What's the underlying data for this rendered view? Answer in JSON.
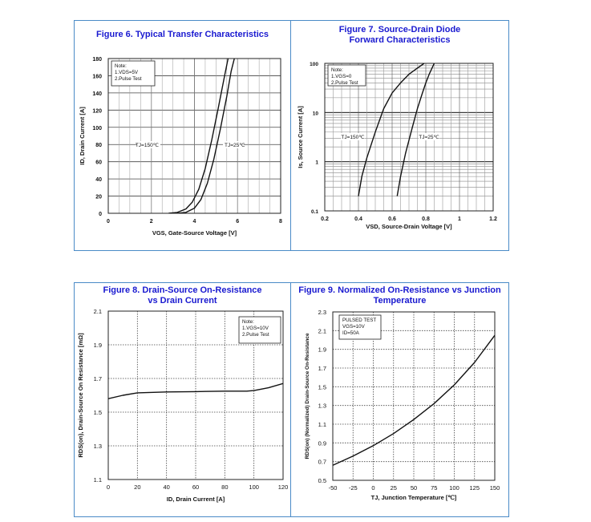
{
  "chart_data": [
    {
      "type": "line",
      "title": "Figure 6. Typical Transfer Characteristics",
      "xlabel": "VGS, Gate-Source Voltage [V]",
      "ylabel": "ID, Drain Current [A]",
      "xlim": [
        0,
        8
      ],
      "ylim": [
        0,
        180
      ],
      "xticks": [
        "0",
        "2",
        "4",
        "6",
        "8"
      ],
      "yticks": [
        "0",
        "20",
        "40",
        "60",
        "80",
        "100",
        "120",
        "140",
        "160",
        "180"
      ],
      "note": [
        "Note:",
        "1.VDS=5V",
        "2.Pulse Test"
      ],
      "series": [
        {
          "name": "TJ=150℃",
          "x": [
            2.8,
            3.2,
            3.6,
            3.9,
            4.2,
            4.5,
            4.8,
            5.1,
            5.4,
            5.6
          ],
          "y": [
            0,
            1,
            5,
            13,
            28,
            52,
            85,
            122,
            160,
            185
          ]
        },
        {
          "name": "TJ=25℃",
          "x": [
            3.2,
            3.6,
            4.0,
            4.3,
            4.6,
            4.9,
            5.2,
            5.5,
            5.7,
            5.9
          ],
          "y": [
            0,
            1,
            6,
            16,
            35,
            63,
            98,
            136,
            165,
            185
          ]
        }
      ]
    },
    {
      "type": "line",
      "title": "Figure 7. Source-Drain Diode Forward Characteristics",
      "xlabel": "VSD, Source-Drain Voltage [V]",
      "ylabel": "Is, Source Current [A]",
      "yscale": "log",
      "xlim": [
        0.2,
        1.2
      ],
      "ylim": [
        0.1,
        100
      ],
      "xticks": [
        "0.2",
        "0.4",
        "0.6",
        "0.8",
        "1",
        "1.2"
      ],
      "yticks": [
        "0.1",
        "1",
        "10",
        "100"
      ],
      "note": [
        "Note:",
        "1.VGS=0",
        "2.Pulse Test"
      ],
      "series": [
        {
          "name": "TJ=150℃",
          "x": [
            0.4,
            0.42,
            0.45,
            0.5,
            0.55,
            0.6,
            0.65,
            0.7,
            0.75,
            0.79
          ],
          "y": [
            0.2,
            0.5,
            1.2,
            4,
            12,
            25,
            40,
            60,
            80,
            100
          ]
        },
        {
          "name": "TJ=25℃",
          "x": [
            0.63,
            0.65,
            0.68,
            0.72,
            0.75,
            0.78,
            0.8,
            0.82,
            0.85
          ],
          "y": [
            0.2,
            0.5,
            1.5,
            5,
            12,
            25,
            40,
            60,
            100
          ]
        }
      ]
    },
    {
      "type": "line",
      "title": "Figure 8. Drain-Source On-Resistance vs Drain Current",
      "xlabel": "ID, Drain Current [A]",
      "ylabel": "RDS(on), Drain-Source On Resistance [mΩ]",
      "xlim": [
        0,
        120
      ],
      "ylim": [
        1.1,
        2.1
      ],
      "xticks": [
        "0",
        "20",
        "40",
        "60",
        "80",
        "100",
        "120"
      ],
      "yticks": [
        "1.1",
        "1.3",
        "1.5",
        "1.7",
        "1.9",
        "2.1"
      ],
      "note": [
        "Note:",
        "1.VGS=10V",
        "2.Pulse Test"
      ],
      "series": [
        {
          "name": "RDS(on)",
          "x": [
            0,
            10,
            20,
            40,
            60,
            80,
            95,
            100,
            110,
            120
          ],
          "y": [
            1.58,
            1.6,
            1.615,
            1.62,
            1.622,
            1.625,
            1.625,
            1.628,
            1.645,
            1.67
          ]
        }
      ]
    },
    {
      "type": "line",
      "title": "Figure 9. Normalized On-Resistance vs Junction Temperature",
      "xlabel": "TJ, Junction Temperature [℃]",
      "ylabel": "RDS(on) (Normalized) Drain-Source On-Resistance",
      "xlim": [
        -50,
        150
      ],
      "ylim": [
        0.5,
        2.3
      ],
      "xticks": [
        "-50",
        "-25",
        "0",
        "25",
        "50",
        "75",
        "100",
        "125",
        "150"
      ],
      "yticks": [
        "0.5",
        "0.7",
        "0.9",
        "1.1",
        "1.3",
        "1.5",
        "1.7",
        "1.9",
        "2.1",
        "2.3"
      ],
      "note": [
        "PULSED TEST",
        "VGS=10V",
        "ID=50A"
      ],
      "series": [
        {
          "name": "Normalized RDS(on)",
          "x": [
            -50,
            -25,
            0,
            25,
            50,
            75,
            100,
            125,
            150
          ],
          "y": [
            0.66,
            0.76,
            0.87,
            1.0,
            1.15,
            1.32,
            1.52,
            1.76,
            2.05
          ]
        }
      ]
    }
  ]
}
